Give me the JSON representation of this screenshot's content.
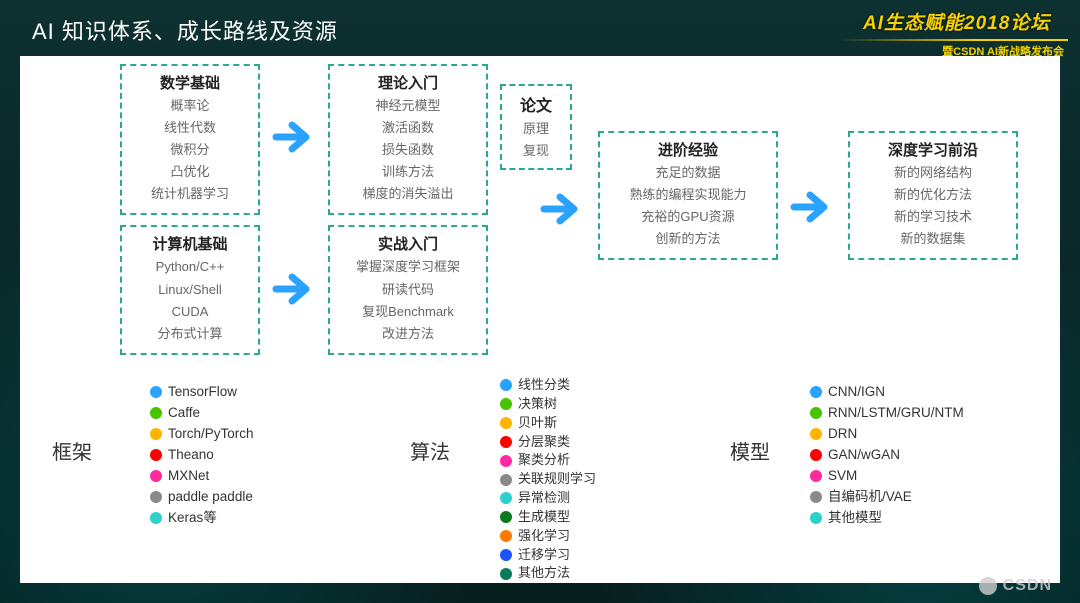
{
  "header": {
    "title": "AI 知识体系、成长路线及资源",
    "brand_main": "AI生态赋能2018论坛",
    "brand_sub": "暨CSDN AI新战略发布会"
  },
  "colors": {
    "arrow": "#29a3ff",
    "box_border": "#2aa890",
    "bg_white": "#ffffff"
  },
  "flow": {
    "col1_top": {
      "title": "数学基础",
      "items": [
        "概率论",
        "线性代数",
        "微积分",
        "凸优化",
        "统计机器学习"
      ]
    },
    "col1_bot": {
      "title": "计算机基础",
      "items": [
        "Python/C++",
        "Linux/Shell",
        "CUDA",
        "分布式计算"
      ]
    },
    "col2_top": {
      "title": "理论入门",
      "items": [
        "神经元模型",
        "激活函数",
        "损失函数",
        "训练方法",
        "梯度的消失溢出"
      ]
    },
    "col2_bot": {
      "title": "实战入门",
      "items": [
        "掌握深度学习框架",
        "研读代码",
        "复现Benchmark",
        "改进方法"
      ]
    },
    "col_paper": {
      "title": "论文",
      "items": [
        "原理",
        "复现"
      ]
    },
    "col_adv": {
      "title": "进阶经验",
      "items": [
        "充足的数据",
        "熟练的编程实现能力",
        "充裕的GPU资源",
        "创新的方法"
      ]
    },
    "col_front": {
      "title": "深度学习前沿",
      "items": [
        "新的网络结构",
        "新的优化方法",
        "新的学习技术",
        "新的数据集"
      ]
    }
  },
  "lists": {
    "framework": {
      "label": "框架",
      "items": [
        {
          "c": "#29a3ff",
          "t": "TensorFlow"
        },
        {
          "c": "#49c200",
          "t": "Caffe"
        },
        {
          "c": "#ffb400",
          "t": "Torch/PyTorch"
        },
        {
          "c": "#ff0000",
          "t": "Theano"
        },
        {
          "c": "#ff2aa0",
          "t": "MXNet"
        },
        {
          "c": "#8a8a8a",
          "t": "paddle paddle"
        },
        {
          "c": "#2cd1c8",
          "t": "Keras等"
        }
      ]
    },
    "algorithm": {
      "label": "算法",
      "items": [
        {
          "c": "#29a3ff",
          "t": "线性分类"
        },
        {
          "c": "#49c200",
          "t": "决策树"
        },
        {
          "c": "#ffb400",
          "t": "贝叶斯"
        },
        {
          "c": "#ff0000",
          "t": "分层聚类"
        },
        {
          "c": "#ff2aa0",
          "t": "聚类分析"
        },
        {
          "c": "#8a8a8a",
          "t": "关联规则学习"
        },
        {
          "c": "#2cd1c8",
          "t": "异常检测"
        },
        {
          "c": "#0a7a1f",
          "t": "生成模型"
        },
        {
          "c": "#ff7a00",
          "t": "强化学习"
        },
        {
          "c": "#1a53ff",
          "t": "迁移学习"
        },
        {
          "c": "#0a7a5a",
          "t": "其他方法"
        }
      ]
    },
    "model": {
      "label": "模型",
      "items": [
        {
          "c": "#29a3ff",
          "t": "CNN/IGN"
        },
        {
          "c": "#49c200",
          "t": "RNN/LSTM/GRU/NTM"
        },
        {
          "c": "#ffb400",
          "t": "DRN"
        },
        {
          "c": "#ff0000",
          "t": "GAN/wGAN"
        },
        {
          "c": "#ff2aa0",
          "t": "SVM"
        },
        {
          "c": "#8a8a8a",
          "t": "自编码机/VAE"
        },
        {
          "c": "#2cd1c8",
          "t": "其他模型"
        }
      ]
    }
  },
  "watermark": "CSDN"
}
